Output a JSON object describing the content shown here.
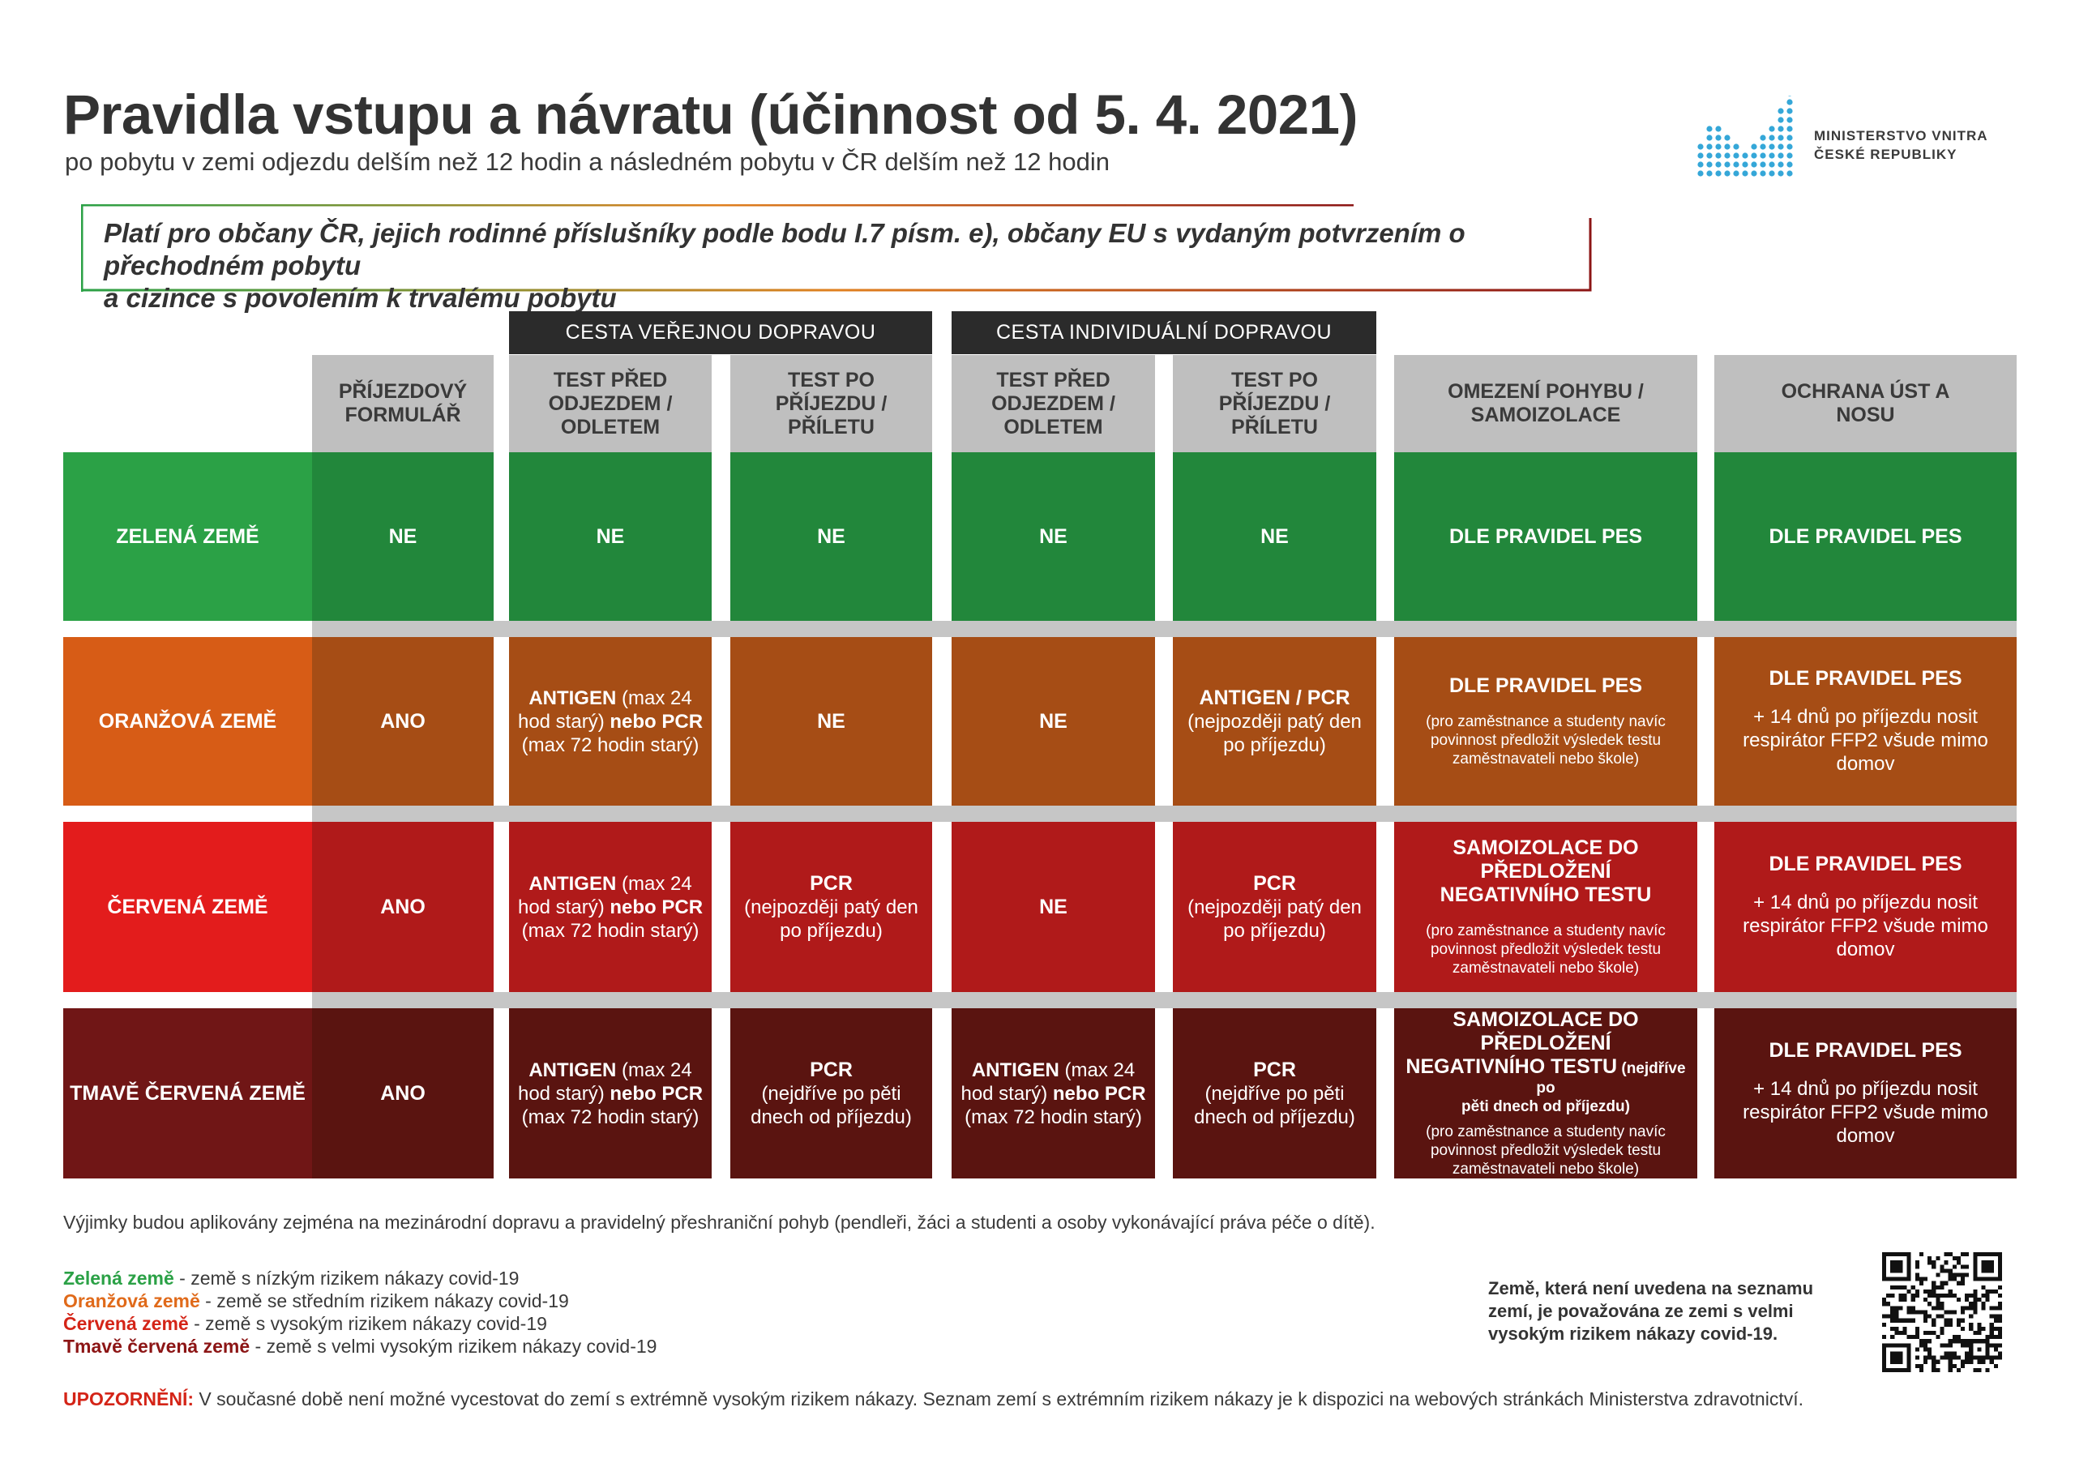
{
  "header": {
    "title": "Pravidla vstupu a návratu (účinnost od 5. 4. 2021)",
    "subtitle": "po pobytu v zemi odjezdu delším než 12 hodin a následném pobytu v ČR delším než 12 hodin"
  },
  "logo": {
    "line1": "MINISTERSTVO VNITRA",
    "line2": "ČESKÉ REPUBLIKY",
    "color": "#35a7d8"
  },
  "note": {
    "line1": "Platí pro občany ČR, jejich rodinné příslušníky podle bodu I.7 písm. e), občany EU s vydaným potvrzením o přechodném pobytu",
    "line2": "a cizince s povolením k trvalému pobytu"
  },
  "groups": {
    "public": "CESTA VEŘEJNOU DOPRAVOU",
    "individual": "CESTA INDIVIDUÁLNÍ DOPRAVOU"
  },
  "columns": {
    "form": [
      "PŘÍJEZDOVÝ",
      "FORMULÁŘ"
    ],
    "pub_before": [
      "TEST PŘED",
      "ODJEZDEM /",
      "ODLETEM"
    ],
    "pub_after": [
      "TEST PO",
      "PŘÍJEZDU /",
      "PŘÍLETU"
    ],
    "ind_before": [
      "TEST PŘED",
      "ODJEZDEM /",
      "ODLETEM"
    ],
    "ind_after": [
      "TEST PO",
      "PŘÍJEZDU /",
      "PŘÍLETU"
    ],
    "movement": [
      "OMEZENÍ POHYBU /",
      "SAMOIZOLACE"
    ],
    "mask": [
      "OCHRANA ÚST A",
      "NOSU"
    ]
  },
  "colors": {
    "green_label": "#2ba146",
    "green": "#22873b",
    "orange_label": "#d75c16",
    "orange": "#a64d15",
    "red_label": "#e31c1c",
    "red": "#b01a1a",
    "darkred_label": "#701616",
    "darkred": "#5a1410",
    "header_gray": "#bfbfbf",
    "separator_gray": "#c6c6c6",
    "group_dark": "#2b2b2b",
    "legend_green": "#2ba146",
    "legend_orange": "#e06a1a",
    "legend_red": "#d42417",
    "legend_darkred": "#8c1515"
  },
  "rows": {
    "green": {
      "label": "ZELENÁ ZEMĚ",
      "form": "NE",
      "pub_before": "NE",
      "pub_after": "NE",
      "ind_before": "NE",
      "ind_after": "NE",
      "movement": "DLE PRAVIDEL PES",
      "mask": "DLE PRAVIDEL PES"
    },
    "orange": {
      "label": "ORANŽOVÁ ZEMĚ",
      "form": "ANO",
      "pub_before": {
        "b1": "ANTIGEN",
        "t1": " (max 24",
        "t2": "hod starý) ",
        "b2": "nebo PCR",
        "t3": "(max 72 hodin starý)"
      },
      "pub_after": "NE",
      "ind_before": "NE",
      "ind_after": {
        "title": "ANTIGEN / PCR",
        "l1": "(nejpozději patý den",
        "l2": "po příjezdu)"
      },
      "movement": {
        "title": "DLE PRAVIDEL PES",
        "s1": "(pro zaměstnance a studenty navíc",
        "s2": "povinnost předložit výsledek testu",
        "s3": "zaměstnavateli nebo škole)"
      },
      "mask": {
        "title": "DLE PRAVIDEL PES",
        "l1": "+ 14 dnů po příjezdu nosit",
        "l2": "respirátor FFP2 všude mimo",
        "l3": "domov"
      }
    },
    "red": {
      "label": "ČERVENÁ ZEMĚ",
      "form": "ANO",
      "pub_before": {
        "b1": "ANTIGEN",
        "t1": " (max 24",
        "t2": "hod starý) ",
        "b2": "nebo PCR",
        "t3": "(max 72 hodin starý)"
      },
      "pub_after": {
        "title": "PCR",
        "l1": "(nejpozději patý den",
        "l2": "po příjezdu)"
      },
      "ind_before": "NE",
      "ind_after": {
        "title": "PCR",
        "l1": "(nejpozději patý den",
        "l2": "po příjezdu)"
      },
      "movement": {
        "t1": "SAMOIZOLACE DO PŘEDLOŽENÍ",
        "t2": "NEGATIVNÍHO TESTU",
        "s1": "(pro zaměstnance a studenty navíc",
        "s2": "povinnost předložit výsledek testu",
        "s3": "zaměstnavateli nebo škole)"
      },
      "mask": {
        "title": "DLE PRAVIDEL PES",
        "l1": "+ 14 dnů po příjezdu nosit",
        "l2": "respirátor FFP2 všude mimo",
        "l3": "domov"
      }
    },
    "darkred": {
      "label": "TMAVĚ ČERVENÁ ZEMĚ",
      "form": "ANO",
      "pub_before": {
        "b1": "ANTIGEN",
        "t1": " (max 24",
        "t2": "hod starý) ",
        "b2": "nebo PCR",
        "t3": "(max 72 hodin starý)"
      },
      "pub_after": {
        "title": "PCR",
        "l1": "(nejdříve po pěti",
        "l2": "dnech od příjezdu)"
      },
      "ind_before": {
        "b1": "ANTIGEN",
        "t1": " (max 24",
        "t2": "hod starý) ",
        "b2": "nebo PCR",
        "t3": "(max 72 hodin starý)"
      },
      "ind_after": {
        "title": "PCR",
        "l1": "(nejdříve po pěti",
        "l2": "dnech od příjezdu)"
      },
      "movement": {
        "t1": "SAMOIZOLACE DO PŘEDLOŽENÍ",
        "t2": "NEGATIVNÍHO TESTU",
        "t2s": " (nejdříve po",
        "t3s": "pěti dnech od příjezdu)",
        "s1": "(pro zaměstnance a studenty navíc",
        "s2": "povinnost předložit výsledek testu",
        "s3": "zaměstnavateli nebo škole)"
      },
      "mask": {
        "title": "DLE PRAVIDEL PES",
        "l1": "+ 14 dnů po příjezdu nosit",
        "l2": "respirátor FFP2 všude mimo",
        "l3": "domov"
      }
    }
  },
  "footer": {
    "exceptions": "Výjimky budou aplikovány zejména na mezinárodní dopravu a pravidelný přeshraniční pohyb (pendleři, žáci a studenti a osoby vykonávající práva péče o dítě).",
    "legend": [
      {
        "term": "Zelená země",
        "desc": " - země s nízkým rizikem nákazy covid-19"
      },
      {
        "term": "Oranžová země",
        "desc": " - země se středním rizikem nákazy covid-19"
      },
      {
        "term": "Červená země",
        "desc": " - země s vysokým rizikem nákazy covid-19"
      },
      {
        "term": "Tmavě červená země",
        "desc": " - země s velmi vysokým rizikem nákazy covid-19"
      }
    ],
    "notice_l1": "Země, která není uvedena na seznamu",
    "notice_l2": "zemí, je považována ze zemi s velmi",
    "notice_l3": "vysokým rizikem nákazy covid-19.",
    "warning_label": "UPOZORNĚNÍ:",
    "warning_text": " V současné době není možné vycestovat do zemí s extrémně vysokým rizikem nákazy. Seznam zemí s extrémním rizikem nákazy je k dispozici na webových stránkách Ministerstva zdravotnictví."
  }
}
